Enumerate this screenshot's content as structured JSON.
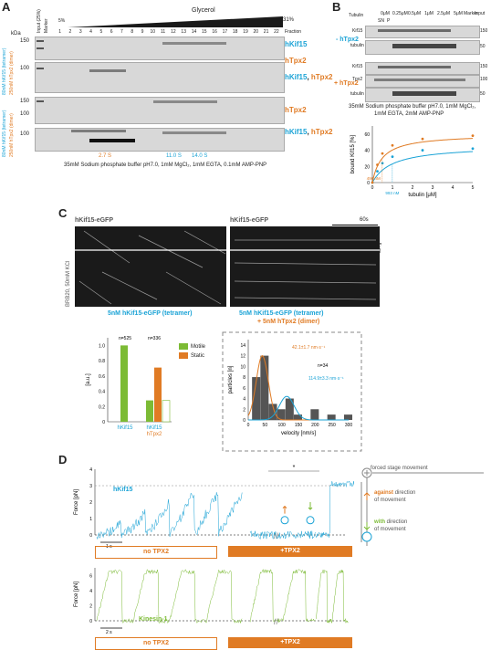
{
  "panelA": {
    "letter": "A",
    "kda": "kDa",
    "input": "Input (25%)",
    "marker": "Marker",
    "glycerol": "Glycerol",
    "pct_low": "5%",
    "pct_high": "31%",
    "fraction": "Fraction",
    "fractions": [
      "1",
      "2",
      "3",
      "4",
      "5",
      "6",
      "7",
      "8",
      "9",
      "10",
      "11",
      "12",
      "13",
      "14",
      "15",
      "16",
      "17",
      "18",
      "19",
      "20",
      "21",
      "22"
    ],
    "side1": "80nM hKif15 (tetramer)",
    "side2": "250nM hTpx2 (dimer)",
    "side3": "80nM hKif15 (tetramer)",
    "side4": "250nM hTpx2 (dimer)",
    "lbl1": "hKif15",
    "lbl2": "hTpx2",
    "lbl3a": "hKif15",
    "lbl3b": "hTpx2",
    "lbl4": "hTpx2",
    "lbl5a": "hKif15",
    "lbl5b": "hTpx2",
    "mw": [
      "150",
      "100",
      "150",
      "100",
      "100",
      "150",
      "100"
    ],
    "s1": "2.7 S",
    "s2": "11.0 S",
    "s3": "14.0 S",
    "buffer": "35mM Sodium phosphate buffer pH7.0, 1mM MgCl₂, 1mM EGTA, 0.1mM AMP-PNP"
  },
  "panelB": {
    "letter": "B",
    "tubulin": "Tubulin",
    "concs": [
      "0μM",
      "0.25μM",
      "0.5μM",
      "1μM",
      "2.5μM",
      "5μM"
    ],
    "sn": "SN",
    "p": "P",
    "marker": "Marker",
    "input": "Input",
    "minus": "- hTpx2",
    "plus": "+ hTpx2",
    "rows": [
      "Kif15",
      "tubulin",
      "Kif15",
      "Tpx2",
      "tubulin"
    ],
    "mw": [
      "150",
      "50",
      "150",
      "100",
      "50"
    ],
    "buffer1": "35mM Sodium phosphate buffer pH7.0, 1mM MgCl₂,",
    "buffer2": "1mM EGTA, 2mM AMP-PNP",
    "ylabel": "bound Kif15 [%]",
    "xlabel": "tubulin [μM]",
    "kd1": "490 nM",
    "kd2": "993 nM",
    "yticks": [
      "0",
      "20",
      "40",
      "60"
    ],
    "xticks": [
      "0",
      "1",
      "2",
      "3",
      "4",
      "5"
    ]
  },
  "panelC": {
    "letter": "C",
    "h1": "hKif15-eGFP",
    "h2": "hKif15-eGFP",
    "scale_t": "60s",
    "scale_x": "5 μm",
    "side": "BRB20, 50mM KCl",
    "cap1": "5nM hKif15-eGFP (tetramer)",
    "cap2a": "5nM hKif15-eGFP (tetramer)",
    "cap2b": "+ 5nM hTpx2 (dimer)",
    "bar_ylabel": "[a.u.]",
    "bar_yticks": [
      "0",
      "0.2",
      "0.4",
      "0.6",
      "0.8",
      "1.0"
    ],
    "n1": "n=525",
    "n2": "n=336",
    "legend_motile": "Motile",
    "legend_static": "Static",
    "bar_x1": "hKif15",
    "bar_x2a": "hKif15",
    "bar_x2b": "hTpx2",
    "hist_ylabel": "particles [n]",
    "hist_xlabel": "velocity [nm/s]",
    "hist_yticks": [
      "0",
      "2",
      "4",
      "6",
      "8",
      "10",
      "12",
      "14"
    ],
    "hist_xticks": [
      "0",
      "50",
      "100",
      "150",
      "200",
      "250",
      "300"
    ],
    "hist_n": "n=34",
    "v1": "42.1±1.7 nm·s⁻¹",
    "v2": "114.9±3.3 nm·s⁻¹"
  },
  "panelD": {
    "letter": "D",
    "ylabel": "Force [pN]",
    "yticks1": [
      "0",
      "1",
      "2",
      "3",
      "4"
    ],
    "yticks2": [
      "0",
      "2",
      "4",
      "6"
    ],
    "trace1": "hKif15",
    "trace2": "Kinesin-1",
    "star": "*",
    "t1": "1 s",
    "t2": "2 s",
    "noTPX2": "no TPX2",
    "plusTPX2": "+TPX2",
    "noTPX2b": "no TPX2",
    "plusTPX2b": "+TPX2",
    "forced": "forced stage movement",
    "against1": "against",
    "against2": "direction",
    "against3": "of movement",
    "with1": "with",
    "with2": "direction",
    "with3": "of movement"
  },
  "chart_data": [
    {
      "type": "bar",
      "categories": [
        "hKif15",
        "hKif15 + hTpx2"
      ],
      "series": [
        {
          "name": "Motile",
          "values": [
            1.0,
            0.28
          ]
        },
        {
          "name": "Static",
          "values": [
            0.0,
            0.71
          ]
        }
      ],
      "ylim": [
        0,
        1.1
      ],
      "ylabel": "[a.u.]"
    },
    {
      "type": "bar",
      "categories": [
        "25",
        "50",
        "75",
        "100",
        "125",
        "150",
        "175",
        "200",
        "225",
        "250",
        "275",
        "300"
      ],
      "values": [
        8,
        12,
        3,
        2,
        4,
        1,
        0,
        2,
        0,
        1,
        0,
        1
      ],
      "xlabel": "velocity [nm/s]",
      "ylabel": "particles [n]",
      "ylim": [
        0,
        15
      ]
    },
    {
      "type": "line",
      "xlabel": "tubulin [μM]",
      "ylabel": "bound Kif15 [%]",
      "series": [
        {
          "name": "- hTpx2",
          "x": [
            0,
            0.25,
            0.5,
            1,
            2.5,
            5
          ],
          "y": [
            0,
            14,
            24,
            32,
            40,
            42
          ]
        },
        {
          "name": "+ hTpx2",
          "x": [
            0,
            0.25,
            0.5,
            1,
            2.5,
            5
          ],
          "y": [
            0,
            22,
            36,
            46,
            54,
            58
          ]
        }
      ],
      "xlim": [
        0,
        5
      ],
      "ylim": [
        0,
        70
      ]
    }
  ]
}
